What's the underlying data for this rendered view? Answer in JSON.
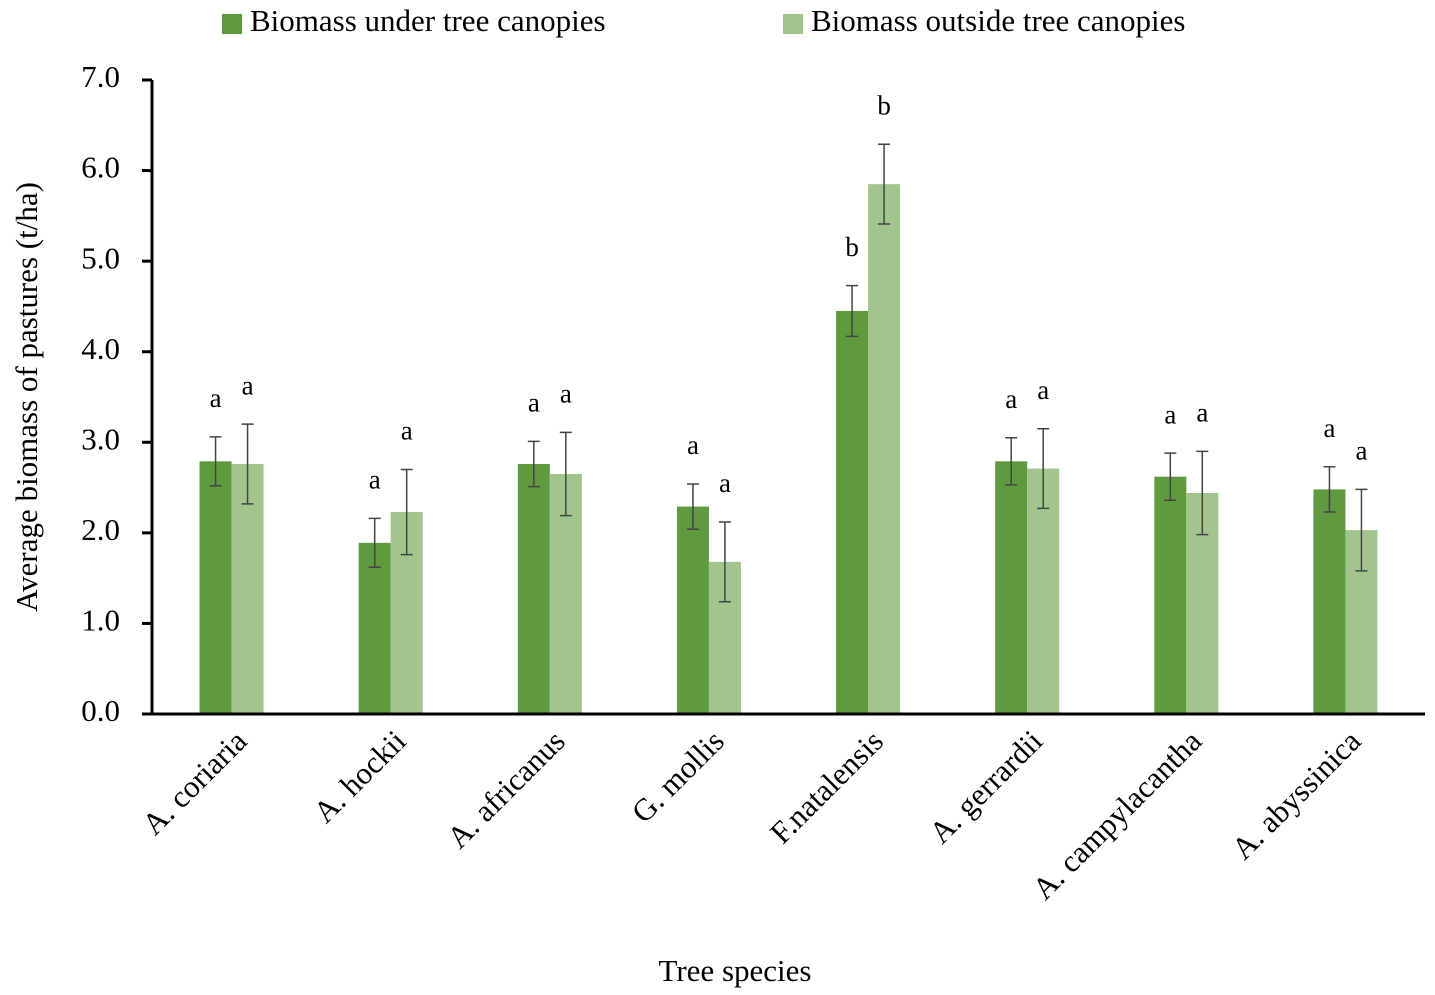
{
  "chart_data": {
    "type": "bar",
    "y_axis_label": "Average biomass of pastures (t/ha)",
    "x_axis_label": "Tree species",
    "categories": [
      "A. coriaria",
      "A. hockii",
      "A. africanus",
      "G. mollis",
      "F.natalensis",
      "A. gerrardii",
      "A. campylacantha",
      "A. abyssinica"
    ],
    "series": [
      {
        "name": "Biomass under tree canopies",
        "color": "#5f9a3f",
        "values": [
          2.79,
          1.89,
          2.76,
          2.29,
          4.45,
          2.79,
          2.62,
          2.48
        ],
        "errors": [
          0.27,
          0.27,
          0.25,
          0.25,
          0.28,
          0.26,
          0.26,
          0.25
        ],
        "letters": [
          "a",
          "a",
          "a",
          "a",
          "b",
          "a",
          "a",
          "a"
        ]
      },
      {
        "name": "Biomass outside tree canopies",
        "color": "#a3c58d",
        "values": [
          2.76,
          2.23,
          2.65,
          1.68,
          5.85,
          2.71,
          2.44,
          2.03
        ],
        "errors": [
          0.44,
          0.47,
          0.46,
          0.44,
          0.44,
          0.44,
          0.46,
          0.45
        ],
        "letters": [
          "a",
          "a",
          "a",
          "a",
          "b",
          "a",
          "a",
          "a"
        ]
      }
    ],
    "ylim": [
      0,
      7
    ],
    "yticks": [
      {
        "value": 0,
        "label": "0.0"
      },
      {
        "value": 1,
        "label": "1.0"
      },
      {
        "value": 2,
        "label": "2.0"
      },
      {
        "value": 3,
        "label": "3.0"
      },
      {
        "value": 4,
        "label": "4.0"
      },
      {
        "value": 5,
        "label": "5.0"
      },
      {
        "value": 6,
        "label": "6.0"
      },
      {
        "value": 7,
        "label": "7.0"
      }
    ],
    "legend": "top",
    "grid": false
  }
}
